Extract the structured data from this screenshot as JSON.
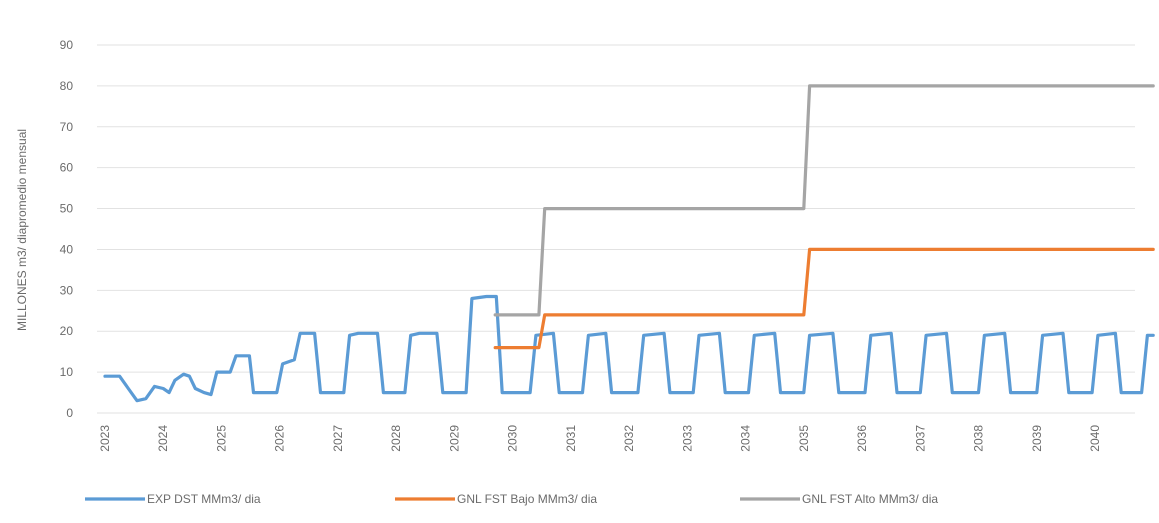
{
  "chart_data": {
    "type": "line",
    "ylabel": "MILLONES m3/ diapromedio mensual",
    "ylim": [
      0,
      90
    ],
    "yticks": [
      0,
      10,
      20,
      30,
      40,
      50,
      60,
      70,
      80,
      90
    ],
    "grid": true,
    "legend_position": "bottom",
    "x_labels": [
      "2023",
      "2024",
      "2025",
      "2026",
      "2027",
      "2028",
      "2029",
      "2030",
      "2031",
      "2032",
      "2033",
      "2034",
      "2035",
      "2036",
      "2037",
      "2038",
      "2039",
      "2040"
    ],
    "series": [
      {
        "name": "EXP DST MMm3/ dia",
        "color": "#5b9bd5",
        "points": [
          [
            2023.0,
            9
          ],
          [
            2023.25,
            9
          ],
          [
            2023.4,
            6
          ],
          [
            2023.55,
            3
          ],
          [
            2023.7,
            3.5
          ],
          [
            2023.85,
            6.5
          ],
          [
            2024.0,
            6
          ],
          [
            2024.1,
            5
          ],
          [
            2024.2,
            8
          ],
          [
            2024.35,
            9.5
          ],
          [
            2024.45,
            9
          ],
          [
            2024.55,
            6
          ],
          [
            2024.7,
            5
          ],
          [
            2024.82,
            4.5
          ],
          [
            2024.92,
            10
          ],
          [
            2025.15,
            10
          ],
          [
            2025.25,
            14
          ],
          [
            2025.48,
            14
          ],
          [
            2025.55,
            5
          ],
          [
            2025.95,
            5
          ],
          [
            2026.05,
            12
          ],
          [
            2026.25,
            13
          ],
          [
            2026.35,
            19.5
          ],
          [
            2026.6,
            19.5
          ],
          [
            2026.7,
            5
          ],
          [
            2027.1,
            5
          ],
          [
            2027.2,
            19
          ],
          [
            2027.35,
            19.5
          ],
          [
            2027.68,
            19.5
          ],
          [
            2027.78,
            5
          ],
          [
            2028.15,
            5
          ],
          [
            2028.25,
            19
          ],
          [
            2028.4,
            19.5
          ],
          [
            2028.7,
            19.5
          ],
          [
            2028.8,
            5
          ],
          [
            2029.2,
            5
          ],
          [
            2029.3,
            28
          ],
          [
            2029.55,
            28.5
          ],
          [
            2029.72,
            28.5
          ],
          [
            2029.82,
            5
          ],
          [
            2030.3,
            5
          ],
          [
            2030.4,
            19
          ],
          [
            2030.7,
            19.5
          ],
          [
            2030.8,
            5
          ],
          [
            2031.2,
            5
          ],
          [
            2031.3,
            19
          ],
          [
            2031.6,
            19.5
          ],
          [
            2031.7,
            5
          ],
          [
            2032.15,
            5
          ],
          [
            2032.25,
            19
          ],
          [
            2032.6,
            19.5
          ],
          [
            2032.7,
            5
          ],
          [
            2033.1,
            5
          ],
          [
            2033.2,
            19
          ],
          [
            2033.55,
            19.5
          ],
          [
            2033.65,
            5
          ],
          [
            2034.05,
            5
          ],
          [
            2034.15,
            19
          ],
          [
            2034.5,
            19.5
          ],
          [
            2034.6,
            5
          ],
          [
            2035.0,
            5
          ],
          [
            2035.1,
            19
          ],
          [
            2035.5,
            19.5
          ],
          [
            2035.6,
            5
          ],
          [
            2036.05,
            5
          ],
          [
            2036.15,
            19
          ],
          [
            2036.5,
            19.5
          ],
          [
            2036.6,
            5
          ],
          [
            2037.0,
            5
          ],
          [
            2037.1,
            19
          ],
          [
            2037.45,
            19.5
          ],
          [
            2037.55,
            5
          ],
          [
            2038.0,
            5
          ],
          [
            2038.1,
            19
          ],
          [
            2038.45,
            19.5
          ],
          [
            2038.55,
            5
          ],
          [
            2039.0,
            5
          ],
          [
            2039.1,
            19
          ],
          [
            2039.45,
            19.5
          ],
          [
            2039.55,
            5
          ],
          [
            2039.95,
            5
          ],
          [
            2040.05,
            19
          ],
          [
            2040.35,
            19.5
          ],
          [
            2040.45,
            5
          ],
          [
            2040.8,
            5
          ],
          [
            2040.9,
            19
          ],
          [
            2041.0,
            19
          ]
        ]
      },
      {
        "name": "GNL FST Bajo MMm3/ dia",
        "color": "#ed7d31",
        "points": [
          [
            2029.7,
            16
          ],
          [
            2030.45,
            16
          ],
          [
            2030.55,
            24
          ],
          [
            2035.0,
            24
          ],
          [
            2035.1,
            40
          ],
          [
            2041.0,
            40
          ]
        ]
      },
      {
        "name": "GNL FST Alto MMm3/ dia",
        "color": "#a5a5a5",
        "points": [
          [
            2029.7,
            24
          ],
          [
            2030.45,
            24
          ],
          [
            2030.55,
            50
          ],
          [
            2035.0,
            50
          ],
          [
            2035.1,
            80
          ],
          [
            2041.0,
            80
          ]
        ]
      }
    ]
  }
}
